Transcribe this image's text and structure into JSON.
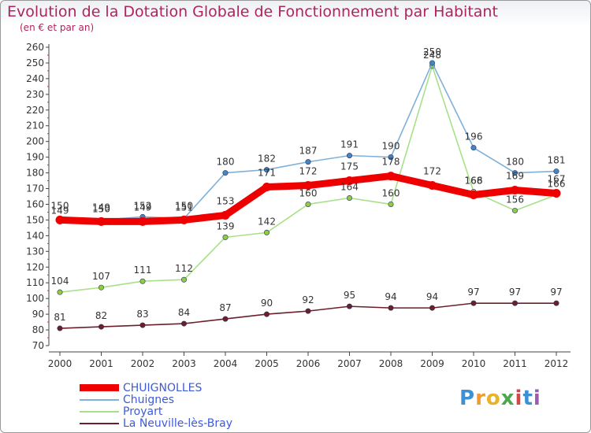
{
  "header": {
    "title": "Evolution de la Dotation Globale de Fonctionnement par Habitant",
    "subtitle": "(en € et par an)"
  },
  "logo": {
    "text": "Proxiti",
    "letters": [
      "P",
      "r",
      "o",
      "x",
      "i",
      "t",
      "i"
    ],
    "colors": [
      "#3f8fd4",
      "#f29a2e",
      "#e8b32a",
      "#4aa84e",
      "#d04848",
      "#3f8fd4",
      "#9b5bb0"
    ]
  },
  "chart_data": {
    "type": "line",
    "title": "Evolution de la Dotation Globale de Fonctionnement par Habitant",
    "subtitle": "(en € et par an)",
    "x": [
      "2000",
      "2001",
      "2002",
      "2003",
      "2004",
      "2005",
      "2006",
      "2007",
      "2008",
      "2009",
      "2010",
      "2011",
      "2012"
    ],
    "ylim": [
      70,
      260
    ],
    "yticks": [
      "70",
      "80",
      "90",
      "100",
      "110",
      "120",
      "130",
      "140",
      "150",
      "160",
      "170",
      "180",
      "190",
      "200",
      "210",
      "220",
      "230",
      "240",
      "250",
      "260"
    ],
    "grid": false,
    "legend_position": "bottom-left",
    "series": [
      {
        "name": "La Neuville-lès-Bray",
        "color": "#6b1f2b",
        "marker": "#6b1f2b",
        "emphasis": "normal",
        "values": [
          81,
          82,
          83,
          84,
          87,
          90,
          92,
          95,
          94,
          94,
          97,
          97,
          97
        ],
        "labels": [
          "81",
          "82",
          "83",
          "84",
          "87",
          "90",
          "92",
          "95",
          "94",
          "94",
          "97",
          "97",
          "97"
        ]
      },
      {
        "name": "Proyart",
        "color": "#a8e08a",
        "marker": "#8ccf3c",
        "emphasis": "normal",
        "values": [
          104,
          107,
          111,
          112,
          139,
          142,
          160,
          164,
          160,
          248,
          168,
          156,
          166
        ],
        "labels": [
          "104",
          "107",
          "111",
          "112",
          "139",
          "142",
          "160",
          "164",
          "160",
          "248",
          "168",
          "156",
          "166"
        ]
      },
      {
        "name": "Chuignes",
        "color": "#7fb0d8",
        "marker": "#3f88c8",
        "emphasis": "normal",
        "values": [
          149,
          150,
          152,
          151,
          180,
          182,
          187,
          191,
          190,
          250,
          196,
          180,
          181
        ],
        "labels": [
          "149",
          "150",
          "152",
          "151",
          "180",
          "182",
          "187",
          "191",
          "190",
          "250",
          "196",
          "180",
          "181"
        ]
      },
      {
        "name": "CHUIGNOLLES",
        "color": "#ee0000",
        "marker": "#ee0000",
        "emphasis": "bold",
        "values": [
          150,
          149,
          149,
          150,
          153,
          171,
          172,
          175,
          178,
          172,
          166,
          169,
          167
        ],
        "labels": [
          "150",
          "149",
          "149",
          "150",
          "153",
          "171",
          "172",
          "175",
          "178",
          "172",
          "166",
          "169",
          "167"
        ]
      }
    ],
    "legend": [
      {
        "name": "CHUIGNOLLES",
        "color": "#ee0000",
        "text_color": "#3d5bd8",
        "emphasis": "bold"
      },
      {
        "name": "Chuignes",
        "color": "#7fb0d8",
        "text_color": "#3d5bd8",
        "emphasis": "normal"
      },
      {
        "name": "Proyart",
        "color": "#a8e08a",
        "text_color": "#3d5bd8",
        "emphasis": "normal"
      },
      {
        "name": "La Neuville-lès-Bray",
        "color": "#6b1f2b",
        "text_color": "#3d5bd8",
        "emphasis": "normal"
      }
    ]
  }
}
